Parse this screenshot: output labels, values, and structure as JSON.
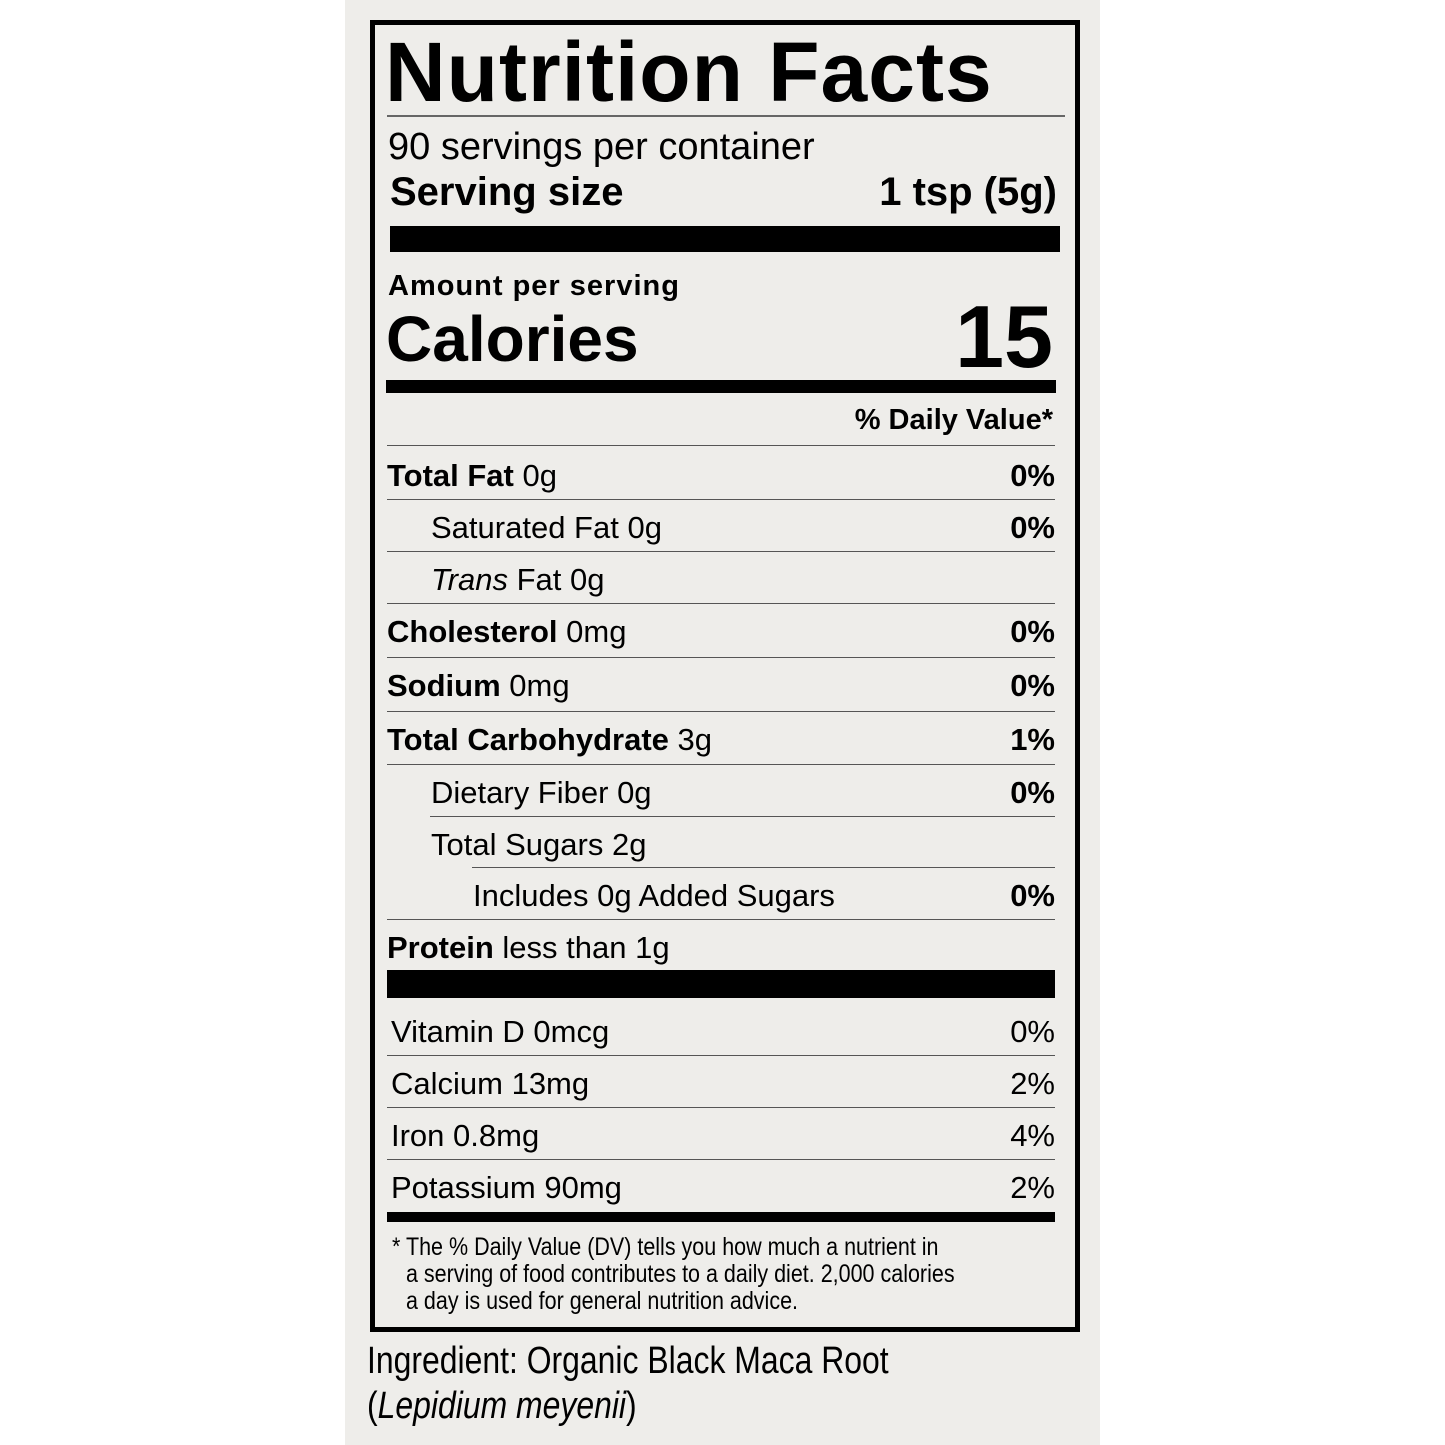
{
  "label": {
    "title": "Nutrition Facts",
    "servings_per_container": "90 servings per container",
    "serving_size_label": "Serving size",
    "serving_size_value": "1 tsp (5g)",
    "amount_per_serving": "Amount per serving",
    "calories_label": "Calories",
    "calories_value": "15",
    "daily_value_header": "% Daily Value*",
    "nutrients": [
      {
        "name": "Total Fat",
        "amount": "0g",
        "dv": "0%",
        "bold": true,
        "indent": 0
      },
      {
        "name": "Saturated Fat",
        "amount": "0g",
        "dv": "0%",
        "bold": false,
        "indent": 1
      },
      {
        "name": "Trans",
        "name_suffix": "Fat",
        "amount": "0g",
        "dv": "",
        "bold": false,
        "indent": 1
      },
      {
        "name": "Cholesterol",
        "amount": "0mg",
        "dv": "0%",
        "bold": true,
        "indent": 0
      },
      {
        "name": "Sodium",
        "amount": "0mg",
        "dv": "0%",
        "bold": true,
        "indent": 0
      },
      {
        "name": "Total Carbohydrate",
        "amount": "3g",
        "dv": "1%",
        "bold": true,
        "indent": 0
      },
      {
        "name": "Dietary Fiber",
        "amount": "0g",
        "dv": "0%",
        "bold": false,
        "indent": 1
      },
      {
        "name": "Total Sugars",
        "amount": "2g",
        "dv": "",
        "bold": false,
        "indent": 1
      },
      {
        "name": "Includes 0g Added Sugars",
        "amount": "",
        "dv": "0%",
        "bold": false,
        "indent": 2
      },
      {
        "name": "Protein",
        "amount": "less than 1g",
        "dv": "",
        "bold": true,
        "indent": 0
      }
    ],
    "vitamins": [
      {
        "name": "Vitamin D 0mcg",
        "dv": "0%"
      },
      {
        "name": "Calcium 13mg",
        "dv": "2%"
      },
      {
        "name": "Iron 0.8mg",
        "dv": "4%"
      },
      {
        "name": "Potassium 90mg",
        "dv": "2%"
      }
    ],
    "footnote": [
      "* The % Daily Value (DV) tells you how much a nutrient in",
      "a serving of food contributes to a daily diet. 2,000 calories",
      "a day is used for general nutrition advice."
    ]
  },
  "ingredients": {
    "line1": "Ingredient: Organic Black Maca Root",
    "paren_open": "(",
    "latin": "Lepidium meyenii",
    "paren_close": ")"
  }
}
